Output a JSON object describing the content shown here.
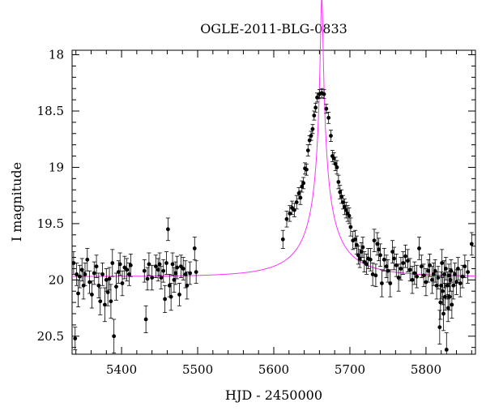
{
  "chart_data": {
    "type": "scatter",
    "title": "OGLE-2011-BLG-0833",
    "xlabel": "HJD - 2450000",
    "ylabel": "I magnitude",
    "xlim": [
      5335,
      5865
    ],
    "ylim": [
      20.66,
      17.96
    ],
    "y_inverted": true,
    "grid": false,
    "x_ticks": [
      5400,
      5500,
      5600,
      5700,
      5800
    ],
    "x_tick_labels": [
      "5400",
      "5500",
      "5600",
      "5700",
      "5800"
    ],
    "y_ticks": [
      18,
      18.5,
      19,
      19.5,
      20,
      20.5
    ],
    "y_tick_labels": [
      "18",
      "18.5",
      "19",
      "19.5",
      "20",
      "20.5"
    ],
    "colors": {
      "points": "#000000",
      "model": "#ff33ff"
    },
    "series": [
      {
        "type": "points_with_errorbars",
        "points": [
          [
            5337,
            19.85,
            0.1
          ],
          [
            5339,
            20.52,
            0.1
          ],
          [
            5341,
            19.95,
            0.1
          ],
          [
            5343,
            20.12,
            0.12
          ],
          [
            5345,
            19.97,
            0.1
          ],
          [
            5348,
            19.91,
            0.1
          ],
          [
            5350,
            20.05,
            0.12
          ],
          [
            5352,
            19.95,
            0.1
          ],
          [
            5355,
            19.82,
            0.1
          ],
          [
            5358,
            20.02,
            0.1
          ],
          [
            5361,
            20.13,
            0.12
          ],
          [
            5364,
            19.94,
            0.1
          ],
          [
            5367,
            19.88,
            0.1
          ],
          [
            5370,
            20.05,
            0.11
          ],
          [
            5372,
            20.19,
            0.12
          ],
          [
            5375,
            19.95,
            0.1
          ],
          [
            5378,
            20.22,
            0.15
          ],
          [
            5380,
            20.0,
            0.1
          ],
          [
            5382,
            20.11,
            0.12
          ],
          [
            5384,
            19.99,
            0.1
          ],
          [
            5386,
            20.19,
            0.15
          ],
          [
            5388,
            19.85,
            0.12
          ],
          [
            5390,
            20.5,
            0.15
          ],
          [
            5393,
            20.06,
            0.12
          ],
          [
            5396,
            19.93,
            0.1
          ],
          [
            5398,
            19.86,
            0.1
          ],
          [
            5401,
            20.03,
            0.11
          ],
          [
            5404,
            19.89,
            0.1
          ],
          [
            5407,
            19.91,
            0.1
          ],
          [
            5410,
            19.95,
            0.1
          ],
          [
            5412,
            19.87,
            0.1
          ],
          [
            5430,
            19.92,
            0.1
          ],
          [
            5432,
            20.35,
            0.12
          ],
          [
            5434,
            19.99,
            0.1
          ],
          [
            5436,
            19.86,
            0.1
          ],
          [
            5440,
            19.98,
            0.11
          ],
          [
            5445,
            19.88,
            0.1
          ],
          [
            5448,
            19.91,
            0.1
          ],
          [
            5450,
            19.86,
            0.1
          ],
          [
            5452,
            19.98,
            0.1
          ],
          [
            5455,
            19.92,
            0.1
          ],
          [
            5457,
            20.17,
            0.12
          ],
          [
            5459,
            19.85,
            0.1
          ],
          [
            5461,
            19.55,
            0.1
          ],
          [
            5463,
            20.05,
            0.1
          ],
          [
            5465,
            20.15,
            0.12
          ],
          [
            5467,
            19.86,
            0.1
          ],
          [
            5469,
            20.0,
            0.11
          ],
          [
            5471,
            19.94,
            0.1
          ],
          [
            5473,
            19.89,
            0.1
          ],
          [
            5476,
            20.13,
            0.1
          ],
          [
            5478,
            19.88,
            0.1
          ],
          [
            5481,
            19.9,
            0.1
          ],
          [
            5484,
            19.95,
            0.12
          ],
          [
            5486,
            20.05,
            0.12
          ],
          [
            5490,
            19.94,
            0.1
          ],
          [
            5496,
            19.72,
            0.1
          ],
          [
            5498,
            19.93,
            0.1
          ],
          [
            5612,
            19.64,
            0.08
          ],
          [
            5617,
            19.46,
            0.07
          ],
          [
            5621,
            19.41,
            0.07
          ],
          [
            5624,
            19.36,
            0.06
          ],
          [
            5627,
            19.38,
            0.06
          ],
          [
            5630,
            19.31,
            0.06
          ],
          [
            5633,
            19.23,
            0.05
          ],
          [
            5635,
            19.27,
            0.06
          ],
          [
            5637,
            19.17,
            0.05
          ],
          [
            5639,
            19.14,
            0.05
          ],
          [
            5641,
            19.01,
            0.05
          ],
          [
            5643,
            19.02,
            0.05
          ],
          [
            5645,
            18.85,
            0.05
          ],
          [
            5647,
            18.76,
            0.04
          ],
          [
            5649,
            18.72,
            0.04
          ],
          [
            5651,
            18.66,
            0.04
          ],
          [
            5653,
            18.54,
            0.04
          ],
          [
            5655,
            18.47,
            0.04
          ],
          [
            5657,
            18.38,
            0.04
          ],
          [
            5660,
            18.35,
            0.04
          ],
          [
            5663,
            18.34,
            0.04
          ],
          [
            5666,
            18.35,
            0.04
          ],
          [
            5669,
            18.48,
            0.04
          ],
          [
            5672,
            18.56,
            0.05
          ],
          [
            5675,
            18.72,
            0.05
          ],
          [
            5677,
            18.9,
            0.05
          ],
          [
            5679,
            18.92,
            0.05
          ],
          [
            5681,
            18.97,
            0.06
          ],
          [
            5683,
            19.0,
            0.06
          ],
          [
            5685,
            19.13,
            0.06
          ],
          [
            5687,
            19.22,
            0.06
          ],
          [
            5689,
            19.26,
            0.06
          ],
          [
            5691,
            19.31,
            0.06
          ],
          [
            5693,
            19.35,
            0.07
          ],
          [
            5695,
            19.38,
            0.07
          ],
          [
            5697,
            19.41,
            0.07
          ],
          [
            5699,
            19.43,
            0.07
          ],
          [
            5701,
            19.53,
            0.08
          ],
          [
            5704,
            19.65,
            0.08
          ],
          [
            5707,
            19.64,
            0.08
          ],
          [
            5709,
            19.69,
            0.08
          ],
          [
            5711,
            19.78,
            0.08
          ],
          [
            5713,
            19.81,
            0.08
          ],
          [
            5715,
            19.75,
            0.08
          ],
          [
            5717,
            19.71,
            0.09
          ],
          [
            5719,
            19.84,
            0.09
          ],
          [
            5722,
            19.86,
            0.09
          ],
          [
            5724,
            19.81,
            0.09
          ],
          [
            5727,
            19.82,
            0.1
          ],
          [
            5730,
            19.95,
            0.1
          ],
          [
            5732,
            19.65,
            0.1
          ],
          [
            5734,
            19.96,
            0.1
          ],
          [
            5736,
            19.68,
            0.1
          ],
          [
            5738,
            19.73,
            0.1
          ],
          [
            5740,
            19.78,
            0.1
          ],
          [
            5742,
            20.03,
            0.12
          ],
          [
            5745,
            19.82,
            0.1
          ],
          [
            5748,
            19.88,
            0.1
          ],
          [
            5750,
            19.92,
            0.1
          ],
          [
            5753,
            20.03,
            0.12
          ],
          [
            5756,
            19.75,
            0.1
          ],
          [
            5758,
            19.81,
            0.1
          ],
          [
            5761,
            19.87,
            0.1
          ],
          [
            5764,
            19.98,
            0.12
          ],
          [
            5767,
            19.9,
            0.1
          ],
          [
            5770,
            19.85,
            0.1
          ],
          [
            5773,
            19.79,
            0.1
          ],
          [
            5776,
            19.83,
            0.1
          ],
          [
            5779,
            19.91,
            0.1
          ],
          [
            5782,
            20.0,
            0.12
          ],
          [
            5785,
            19.94,
            0.1
          ],
          [
            5788,
            19.97,
            0.1
          ],
          [
            5791,
            19.72,
            0.1
          ],
          [
            5794,
            19.88,
            0.1
          ],
          [
            5797,
            19.96,
            0.1
          ],
          [
            5800,
            20.02,
            0.12
          ],
          [
            5803,
            19.92,
            0.1
          ],
          [
            5805,
            19.87,
            0.1
          ],
          [
            5808,
            20.0,
            0.12
          ],
          [
            5810,
            19.95,
            0.1
          ],
          [
            5812,
            19.92,
            0.1
          ],
          [
            5814,
            20.05,
            0.12
          ],
          [
            5816,
            19.98,
            0.1
          ],
          [
            5818,
            20.42,
            0.15
          ],
          [
            5819,
            20.2,
            0.15
          ],
          [
            5820,
            20.05,
            0.12
          ],
          [
            5821,
            19.85,
            0.12
          ],
          [
            5822,
            20.1,
            0.12
          ],
          [
            5823,
            20.3,
            0.15
          ],
          [
            5824,
            19.95,
            0.12
          ],
          [
            5825,
            20.15,
            0.12
          ],
          [
            5826,
            19.9,
            0.1
          ],
          [
            5827,
            20.62,
            0.15
          ],
          [
            5828,
            20.05,
            0.12
          ],
          [
            5829,
            20.25,
            0.12
          ],
          [
            5830,
            19.96,
            0.1
          ],
          [
            5831,
            20.15,
            0.12
          ],
          [
            5832,
            20.0,
            0.1
          ],
          [
            5833,
            19.92,
            0.1
          ],
          [
            5834,
            20.22,
            0.12
          ],
          [
            5836,
            20.05,
            0.12
          ],
          [
            5838,
            19.95,
            0.1
          ],
          [
            5840,
            20.02,
            0.11
          ],
          [
            5842,
            19.9,
            0.1
          ],
          [
            5845,
            20.03,
            0.12
          ],
          [
            5848,
            19.97,
            0.1
          ],
          [
            5851,
            19.88,
            0.1
          ],
          [
            5855,
            19.93,
            0.1
          ],
          [
            5860,
            19.68,
            0.1
          ]
        ]
      },
      {
        "type": "model_curve",
        "paczynski": {
          "t0": 5663,
          "tE": 80,
          "u0": 0.017,
          "fs": 0.16,
          "baseline_mag": 19.97
        }
      }
    ]
  }
}
